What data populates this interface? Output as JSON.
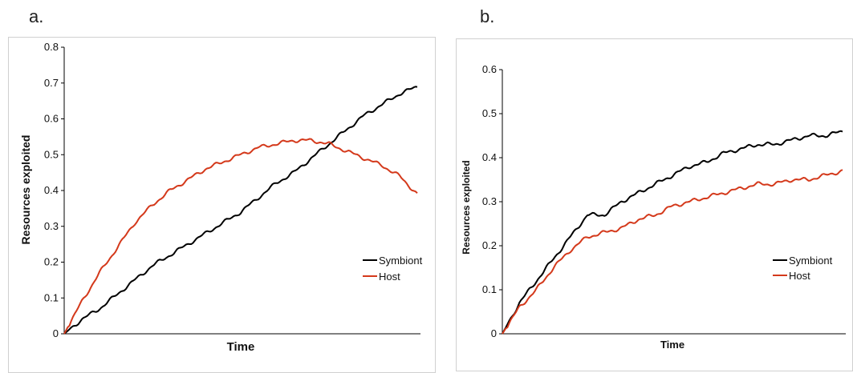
{
  "panels": [
    {
      "letter": "a."
    },
    {
      "letter": "b."
    }
  ],
  "colors": {
    "symbiont": "#000000",
    "host": "#d4391b"
  },
  "chart_data": [
    {
      "type": "line",
      "xlabel": "Time",
      "ylabel": "Resources exploited",
      "ylim": [
        0,
        0.8
      ],
      "yticks": [
        "0",
        "0.1",
        "0.2",
        "0.3",
        "0.4",
        "0.5",
        "0.6",
        "0.7",
        "0.8"
      ],
      "x": [
        0,
        0.05,
        0.1,
        0.15,
        0.2,
        0.25,
        0.3,
        0.35,
        0.4,
        0.45,
        0.5,
        0.55,
        0.6,
        0.65,
        0.7,
        0.75,
        0.8,
        0.85,
        0.9,
        0.95,
        1.0
      ],
      "legend_position": "bottom-right",
      "series": [
        {
          "name": "Symbiont",
          "values": [
            0.0,
            0.04,
            0.07,
            0.11,
            0.15,
            0.19,
            0.22,
            0.25,
            0.28,
            0.31,
            0.34,
            0.38,
            0.42,
            0.45,
            0.49,
            0.53,
            0.57,
            0.61,
            0.64,
            0.67,
            0.69
          ]
        },
        {
          "name": "Host",
          "values": [
            0.0,
            0.09,
            0.17,
            0.24,
            0.31,
            0.36,
            0.4,
            0.43,
            0.46,
            0.48,
            0.5,
            0.52,
            0.53,
            0.54,
            0.54,
            0.53,
            0.51,
            0.49,
            0.47,
            0.44,
            0.39
          ]
        }
      ]
    },
    {
      "type": "line",
      "xlabel": "Time",
      "ylabel": "Resources exploited",
      "ylim": [
        0,
        0.6
      ],
      "yticks": [
        "0",
        "0.1",
        "0.2",
        "0.3",
        "0.4",
        "0.5",
        "0.6"
      ],
      "x": [
        0,
        0.05,
        0.1,
        0.15,
        0.2,
        0.25,
        0.3,
        0.35,
        0.4,
        0.45,
        0.5,
        0.55,
        0.6,
        0.65,
        0.7,
        0.75,
        0.8,
        0.85,
        0.9,
        0.95,
        1.0
      ],
      "legend_position": "right",
      "series": [
        {
          "name": "Symbiont",
          "values": [
            0.0,
            0.07,
            0.12,
            0.17,
            0.22,
            0.27,
            0.27,
            0.3,
            0.32,
            0.34,
            0.36,
            0.38,
            0.39,
            0.41,
            0.42,
            0.43,
            0.43,
            0.44,
            0.45,
            0.45,
            0.46
          ]
        },
        {
          "name": "Host",
          "values": [
            0.0,
            0.06,
            0.1,
            0.15,
            0.19,
            0.22,
            0.23,
            0.24,
            0.26,
            0.27,
            0.29,
            0.3,
            0.31,
            0.32,
            0.33,
            0.34,
            0.34,
            0.35,
            0.35,
            0.36,
            0.37
          ]
        }
      ]
    }
  ]
}
